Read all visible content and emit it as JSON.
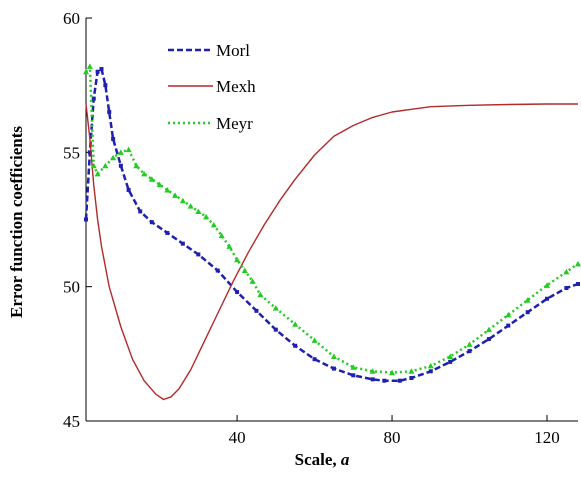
{
  "chart_data": {
    "type": "line",
    "title": "",
    "xlabel": "Scale,",
    "xlabel_var": "a",
    "ylabel": "Error function coefficients",
    "xlim": [
      1,
      128
    ],
    "ylim": [
      45,
      60
    ],
    "xticks": [
      40,
      80,
      120
    ],
    "yticks": [
      45,
      50,
      55,
      60
    ],
    "grid": false,
    "legend_position": "top-left",
    "series": [
      {
        "name": "Morl",
        "color": "#1f1fb0",
        "style": "dashed-blue-markers",
        "points": [
          [
            1,
            52.5
          ],
          [
            2,
            55
          ],
          [
            3,
            57
          ],
          [
            4,
            58
          ],
          [
            5,
            58.1
          ],
          [
            6,
            57.5
          ],
          [
            7,
            56.5
          ],
          [
            8,
            55.5
          ],
          [
            10,
            54.5
          ],
          [
            12,
            53.6
          ],
          [
            15,
            52.8
          ],
          [
            18,
            52.4
          ],
          [
            22,
            52.0
          ],
          [
            26,
            51.6
          ],
          [
            30,
            51.2
          ],
          [
            35,
            50.6
          ],
          [
            40,
            49.8
          ],
          [
            45,
            49.1
          ],
          [
            50,
            48.4
          ],
          [
            55,
            47.8
          ],
          [
            60,
            47.3
          ],
          [
            65,
            46.95
          ],
          [
            70,
            46.7
          ],
          [
            75,
            46.55
          ],
          [
            78,
            46.5
          ],
          [
            82,
            46.5
          ],
          [
            85,
            46.6
          ],
          [
            90,
            46.85
          ],
          [
            95,
            47.2
          ],
          [
            100,
            47.6
          ],
          [
            105,
            48.05
          ],
          [
            110,
            48.55
          ],
          [
            115,
            49.05
          ],
          [
            120,
            49.55
          ],
          [
            125,
            49.95
          ],
          [
            128,
            50.1
          ]
        ]
      },
      {
        "name": "Mexh",
        "color": "#b22a2a",
        "style": "solid",
        "points": [
          [
            1,
            56.8
          ],
          [
            2,
            55.5
          ],
          [
            3,
            53.8
          ],
          [
            4,
            52.5
          ],
          [
            5,
            51.5
          ],
          [
            7,
            50.0
          ],
          [
            10,
            48.5
          ],
          [
            13,
            47.3
          ],
          [
            16,
            46.5
          ],
          [
            19,
            46.0
          ],
          [
            21,
            45.8
          ],
          [
            23,
            45.9
          ],
          [
            25,
            46.2
          ],
          [
            28,
            46.9
          ],
          [
            31,
            47.8
          ],
          [
            35,
            49.0
          ],
          [
            39,
            50.2
          ],
          [
            43,
            51.3
          ],
          [
            47,
            52.3
          ],
          [
            51,
            53.2
          ],
          [
            55,
            54.0
          ],
          [
            60,
            54.9
          ],
          [
            65,
            55.6
          ],
          [
            70,
            56.0
          ],
          [
            75,
            56.3
          ],
          [
            80,
            56.5
          ],
          [
            85,
            56.6
          ],
          [
            90,
            56.7
          ],
          [
            100,
            56.75
          ],
          [
            110,
            56.78
          ],
          [
            120,
            56.8
          ],
          [
            128,
            56.8
          ]
        ]
      },
      {
        "name": "Meyr",
        "color": "#22cc22",
        "style": "dotted-green-markers",
        "points": [
          [
            1,
            58.0
          ],
          [
            2,
            58.2
          ],
          [
            3,
            54.5
          ],
          [
            4,
            54.2
          ],
          [
            6,
            54.5
          ],
          [
            8,
            54.8
          ],
          [
            10,
            55.0
          ],
          [
            12,
            55.1
          ],
          [
            14,
            54.5
          ],
          [
            16,
            54.2
          ],
          [
            18,
            54.0
          ],
          [
            20,
            53.8
          ],
          [
            22,
            53.6
          ],
          [
            24,
            53.4
          ],
          [
            26,
            53.2
          ],
          [
            28,
            53.0
          ],
          [
            30,
            52.8
          ],
          [
            32,
            52.6
          ],
          [
            34,
            52.3
          ],
          [
            36,
            51.9
          ],
          [
            38,
            51.5
          ],
          [
            40,
            51.0
          ],
          [
            42,
            50.6
          ],
          [
            44,
            50.2
          ],
          [
            46,
            49.7
          ],
          [
            50,
            49.2
          ],
          [
            55,
            48.6
          ],
          [
            60,
            48.0
          ],
          [
            65,
            47.4
          ],
          [
            70,
            47.0
          ],
          [
            75,
            46.85
          ],
          [
            80,
            46.8
          ],
          [
            85,
            46.85
          ],
          [
            90,
            47.05
          ],
          [
            95,
            47.4
          ],
          [
            100,
            47.85
          ],
          [
            105,
            48.4
          ],
          [
            110,
            48.95
          ],
          [
            115,
            49.5
          ],
          [
            120,
            50.05
          ],
          [
            125,
            50.55
          ],
          [
            128,
            50.85
          ]
        ]
      }
    ]
  }
}
